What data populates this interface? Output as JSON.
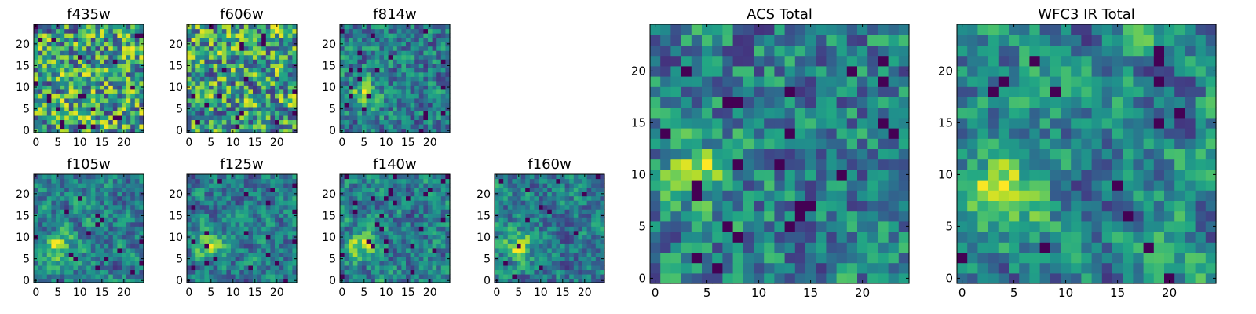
{
  "figure": {
    "background": "#ffffff"
  },
  "chart_data": [
    {
      "type": "heatmap",
      "title": "f435w",
      "grid": [
        25,
        25
      ],
      "peak": null,
      "noise": 0.85,
      "seed": 11,
      "xlim": [
        0,
        24
      ],
      "ylim": [
        0,
        24
      ],
      "xticks": [
        "0",
        "5",
        "10",
        "15",
        "20"
      ],
      "yticks": [
        "0",
        "5",
        "10",
        "15",
        "20"
      ],
      "colormap": "viridis"
    },
    {
      "type": "heatmap",
      "title": "f606w",
      "grid": [
        25,
        25
      ],
      "peak": null,
      "noise": 0.85,
      "seed": 23,
      "xlim": [
        0,
        24
      ],
      "ylim": [
        0,
        24
      ],
      "xticks": [
        "0",
        "5",
        "10",
        "15",
        "20"
      ],
      "yticks": [
        "0",
        "5",
        "10",
        "15",
        "20"
      ],
      "colormap": "viridis"
    },
    {
      "type": "heatmap",
      "title": "f814w",
      "grid": [
        25,
        25
      ],
      "peak": [
        5,
        9
      ],
      "noise": 0.8,
      "seed": 37,
      "xlim": [
        0,
        24
      ],
      "ylim": [
        0,
        24
      ],
      "xticks": [
        "0",
        "5",
        "10",
        "15",
        "20"
      ],
      "yticks": [
        "0",
        "5",
        "10",
        "15",
        "20"
      ],
      "colormap": "viridis"
    },
    {
      "type": "heatmap",
      "title": "f105w",
      "grid": [
        25,
        25
      ],
      "peak": [
        5,
        8
      ],
      "noise": 0.55,
      "seed": 41,
      "xlim": [
        0,
        24
      ],
      "ylim": [
        0,
        24
      ],
      "xticks": [
        "0",
        "5",
        "10",
        "15",
        "20"
      ],
      "yticks": [
        "0",
        "5",
        "10",
        "15",
        "20"
      ],
      "colormap": "viridis"
    },
    {
      "type": "heatmap",
      "title": "f125w",
      "grid": [
        25,
        25
      ],
      "peak": [
        5,
        8
      ],
      "noise": 0.55,
      "seed": 53,
      "xlim": [
        0,
        24
      ],
      "ylim": [
        0,
        24
      ],
      "xticks": [
        "0",
        "5",
        "10",
        "15",
        "20"
      ],
      "yticks": [
        "0",
        "5",
        "10",
        "15",
        "20"
      ],
      "colormap": "viridis"
    },
    {
      "type": "heatmap",
      "title": "f140w",
      "grid": [
        25,
        25
      ],
      "peak": [
        5,
        8
      ],
      "noise": 0.55,
      "seed": 67,
      "xlim": [
        0,
        24
      ],
      "ylim": [
        0,
        24
      ],
      "xticks": [
        "0",
        "5",
        "10",
        "15",
        "20"
      ],
      "yticks": [
        "0",
        "5",
        "10",
        "15",
        "20"
      ],
      "colormap": "viridis"
    },
    {
      "type": "heatmap",
      "title": "f160w",
      "grid": [
        25,
        25
      ],
      "peak": [
        5,
        8
      ],
      "noise": 0.55,
      "seed": 79,
      "xlim": [
        0,
        24
      ],
      "ylim": [
        0,
        24
      ],
      "xticks": [
        "0",
        "5",
        "10",
        "15",
        "20"
      ],
      "yticks": [
        "0",
        "5",
        "10",
        "15",
        "20"
      ],
      "colormap": "viridis"
    },
    {
      "type": "heatmap",
      "title": "ACS Total",
      "grid": [
        25,
        25
      ],
      "peak": [
        4,
        10
      ],
      "noise": 0.85,
      "seed": 97,
      "xlim": [
        0,
        24
      ],
      "ylim": [
        0,
        24
      ],
      "xticks": [
        "0",
        "5",
        "10",
        "15",
        "20"
      ],
      "yticks": [
        "0",
        "5",
        "10",
        "15",
        "20"
      ],
      "colormap": "viridis"
    },
    {
      "type": "heatmap",
      "title": "WFC3 IR Total",
      "grid": [
        25,
        25
      ],
      "peak": [
        4,
        8
      ],
      "noise": 0.45,
      "seed": 113,
      "xlim": [
        0,
        24
      ],
      "ylim": [
        0,
        24
      ],
      "xticks": [
        "0",
        "5",
        "10",
        "15",
        "20"
      ],
      "yticks": [
        "0",
        "5",
        "10",
        "15",
        "20"
      ],
      "colormap": "viridis"
    }
  ]
}
